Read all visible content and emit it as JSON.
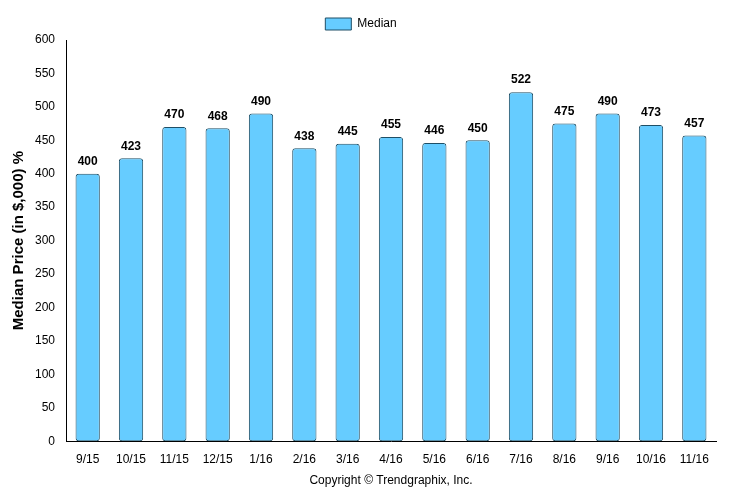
{
  "chart_data": {
    "type": "bar",
    "y_label": "Median Price (in $,000) %",
    "x_label": "Copyright © Trendgraphix, Inc.",
    "categories": [
      "9/15",
      "10/15",
      "11/15",
      "12/15",
      "1/16",
      "2/16",
      "3/16",
      "4/16",
      "5/16",
      "6/16",
      "7/16",
      "8/16",
      "9/16",
      "10/16",
      "11/16"
    ],
    "series": [
      {
        "name": "Median",
        "color": "#66ccff",
        "values": [
          400,
          423,
          470,
          468,
          490,
          438,
          445,
          455,
          446,
          450,
          522,
          475,
          490,
          473,
          457
        ]
      }
    ],
    "ylim": [
      0,
      600
    ],
    "yticks": [
      0,
      50,
      100,
      150,
      200,
      250,
      300,
      350,
      400,
      450,
      500,
      550,
      600
    ],
    "grid": false,
    "legend": "top",
    "data_labels": true
  }
}
